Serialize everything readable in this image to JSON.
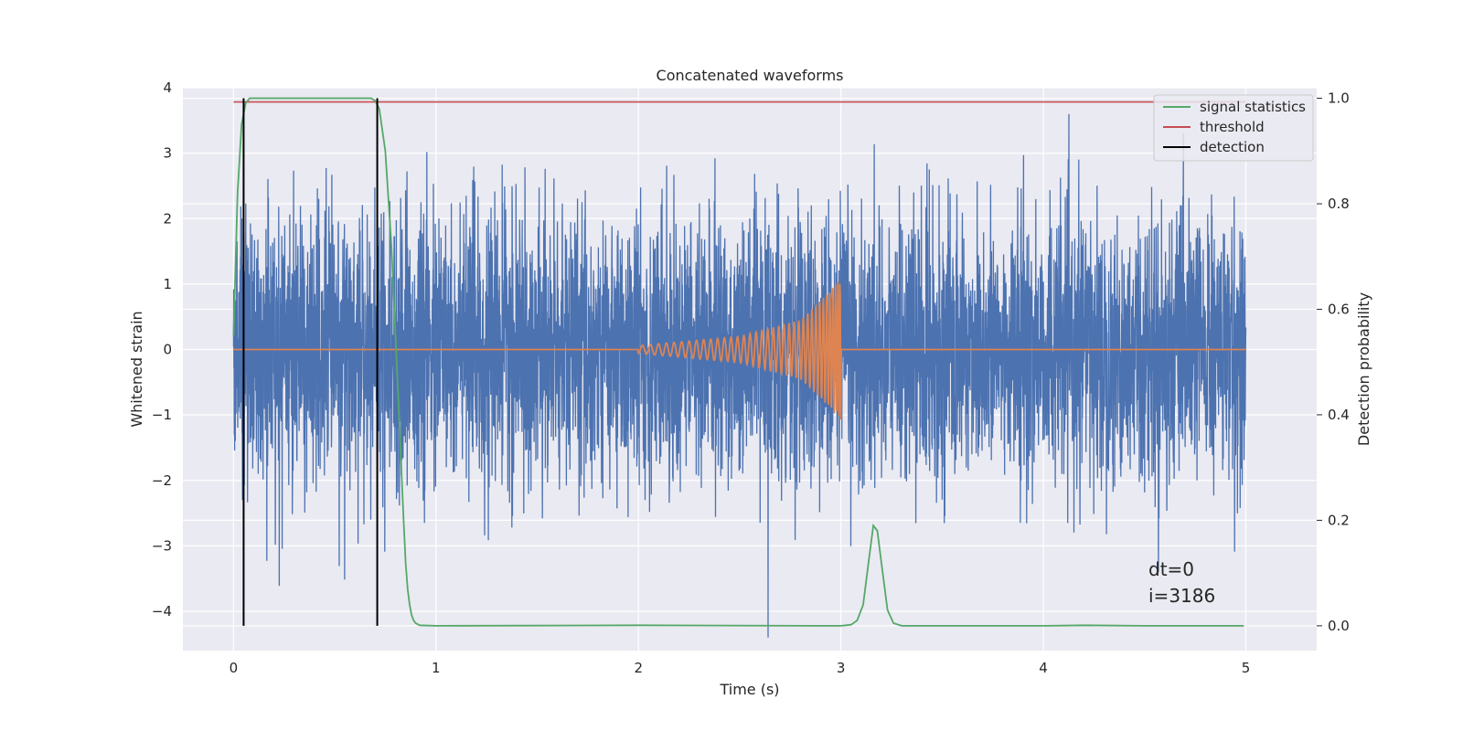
{
  "chart_data": {
    "type": "line",
    "title": "Concatenated waveforms",
    "xlabel": "Time (s)",
    "ylabel": "Whitened strain",
    "y2label": "Detection probability",
    "xlim": [
      -0.25,
      5.35
    ],
    "ylim": [
      -4.6,
      4.0
    ],
    "y2lim": [
      -0.047,
      1.02
    ],
    "xticks": [
      0,
      1,
      2,
      3,
      4,
      5
    ],
    "yticks": [
      -4,
      -3,
      -2,
      -1,
      0,
      1,
      2,
      3,
      4
    ],
    "y2ticks": [
      0.0,
      0.2,
      0.4,
      0.6,
      0.8,
      1.0
    ],
    "grid": true,
    "legend": {
      "position": "top-right",
      "entries": [
        {
          "label": "signal statistics",
          "color": "#55a868"
        },
        {
          "label": "threshold",
          "color": "#c44e52"
        },
        {
          "label": "detection",
          "color": "#000000"
        }
      ]
    },
    "annotations": [
      "dt=0",
      "i=3186"
    ],
    "colors": {
      "strain": "#4c72b0",
      "template": "#dd8452",
      "signal_statistics": "#55a868",
      "threshold": "#c44e52",
      "detection": "#000000",
      "plot_bg": "#eaeaf2",
      "grid": "#ffffff"
    },
    "series": [
      {
        "name": "signal statistics",
        "axis": "right",
        "x": [
          0,
          0.02,
          0.04,
          0.06,
          0.08,
          0.1,
          0.2,
          0.4,
          0.6,
          0.65,
          0.68,
          0.7,
          0.72,
          0.75,
          0.78,
          0.8,
          0.82,
          0.84,
          0.85,
          0.86,
          0.87,
          0.88,
          0.89,
          0.9,
          0.92,
          1.0,
          2.0,
          2.95,
          3.0,
          3.05,
          3.08,
          3.11,
          3.14,
          3.16,
          3.18,
          3.2,
          3.23,
          3.26,
          3.3,
          3.5,
          4.0,
          4.2,
          4.5,
          4.99
        ],
        "values": [
          0.55,
          0.82,
          0.95,
          0.99,
          1.0,
          1.0,
          1.0,
          1.0,
          1.0,
          1.0,
          1.0,
          0.995,
          0.98,
          0.9,
          0.72,
          0.55,
          0.38,
          0.2,
          0.12,
          0.07,
          0.04,
          0.02,
          0.01,
          0.005,
          0.001,
          0.0,
          0.001,
          0.0,
          0.0,
          0.002,
          0.01,
          0.04,
          0.13,
          0.19,
          0.18,
          0.12,
          0.03,
          0.005,
          0.0,
          0.0,
          0.0,
          0.001,
          0.0,
          0.0
        ]
      },
      {
        "name": "threshold",
        "axis": "right",
        "x": [
          0,
          5
        ],
        "values": [
          0.993,
          0.993
        ]
      },
      {
        "name": "detection",
        "axis": "right",
        "segments": [
          {
            "x": 0.05,
            "values": [
              0.0,
              1.0
            ]
          },
          {
            "x": 0.71,
            "values": [
              0.0,
              1.0
            ]
          }
        ]
      },
      {
        "name": "",
        "axis": "left",
        "kind": "whitened strain noise",
        "x_range": [
          0,
          5
        ],
        "std": 1.0,
        "peak_range": [
          -4.4,
          3.6
        ]
      },
      {
        "name": "",
        "axis": "left",
        "kind": "chirp template",
        "x": [
          0,
          2.0,
          2.5,
          2.8,
          2.95,
          3.0,
          3.01,
          5.0
        ],
        "values": [
          0,
          0.06,
          0.2,
          0.45,
          0.9,
          1.1,
          0,
          0
        ]
      }
    ]
  }
}
